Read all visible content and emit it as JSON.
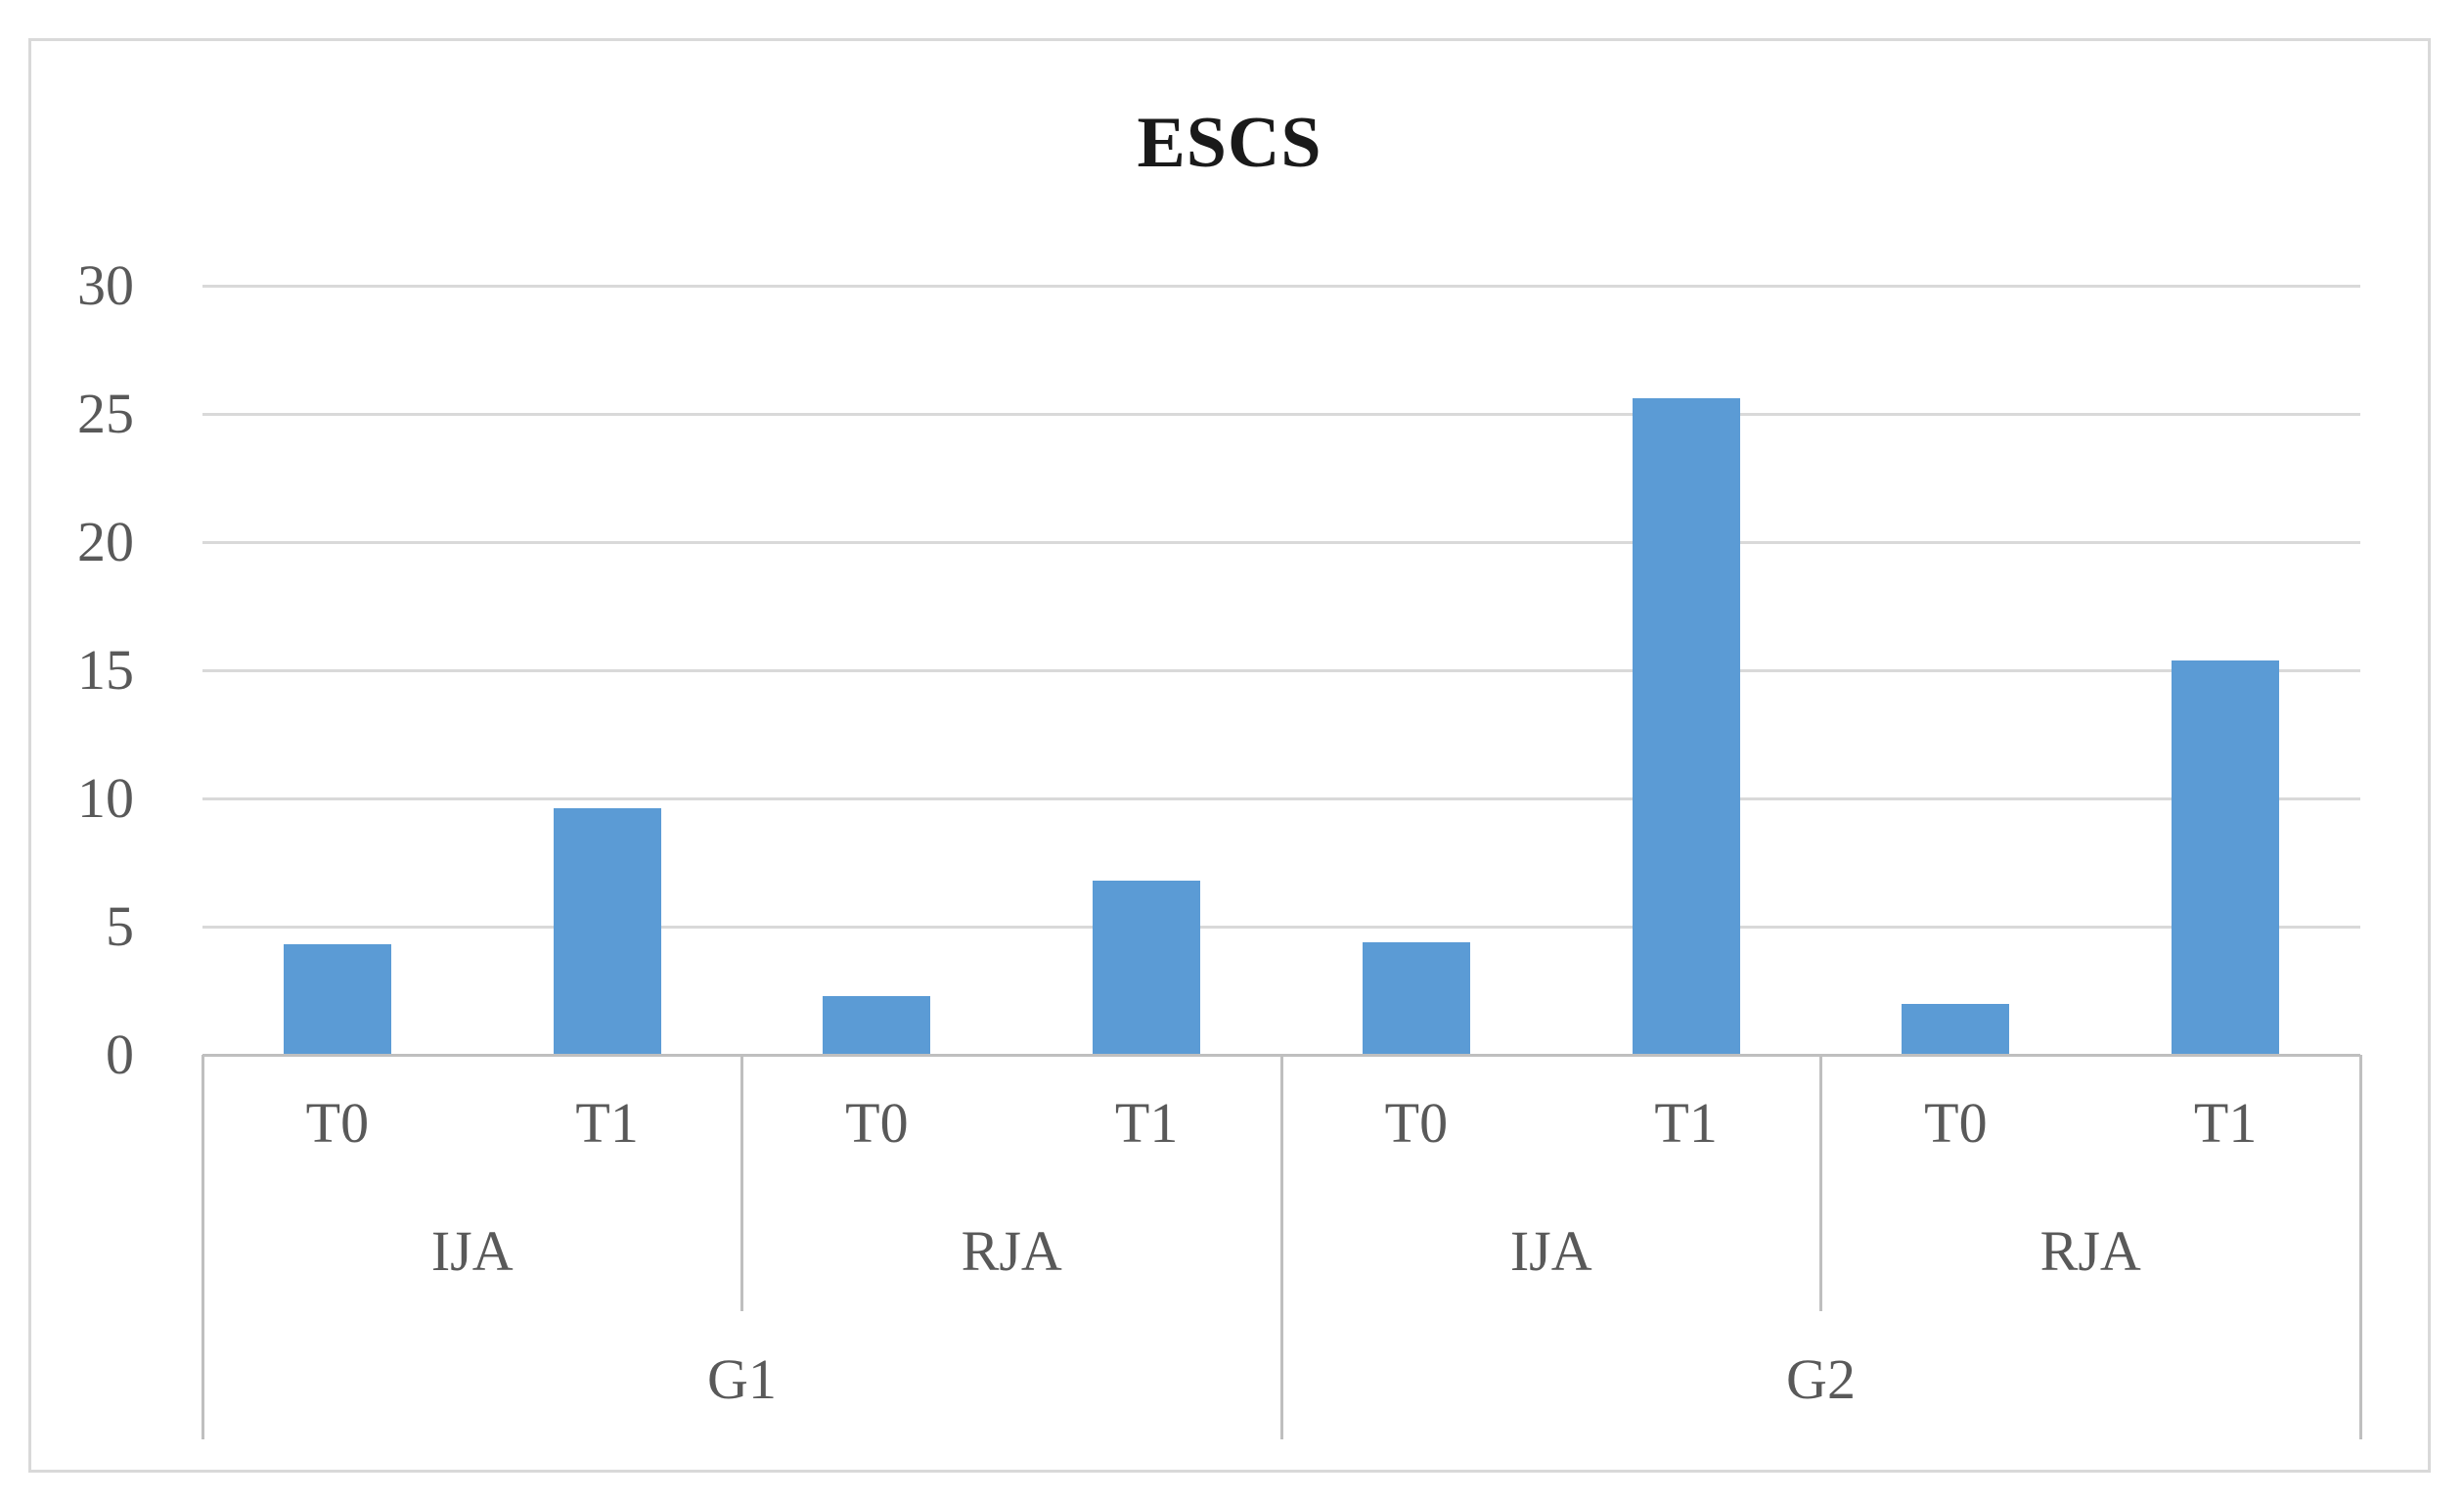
{
  "chart_data": {
    "type": "bar",
    "title": "ESCS",
    "values": [
      4.3,
      9.6,
      2.3,
      6.8,
      4.4,
      25.6,
      2.0,
      15.4
    ],
    "level1_time_labels": [
      "T0",
      "T1",
      "T0",
      "T1",
      "T0",
      "T1",
      "T0",
      "T1"
    ],
    "level2_condition_labels": [
      "IJA",
      "RJA",
      "IJA",
      "RJA"
    ],
    "level3_group_labels": [
      "G1",
      "G2"
    ],
    "yticks": [
      0,
      5,
      10,
      15,
      20,
      25,
      30
    ],
    "ylim": [
      0,
      30
    ],
    "grid": "horizontal",
    "legend": "none",
    "bar_color": "#5b9bd5",
    "gridline_color": "#d9d9d9",
    "axis_line_color": "#bfbfbf",
    "label_color": "#595959",
    "title_color": "#1a1a1a",
    "figure_border_color": "#d9d9d9"
  }
}
